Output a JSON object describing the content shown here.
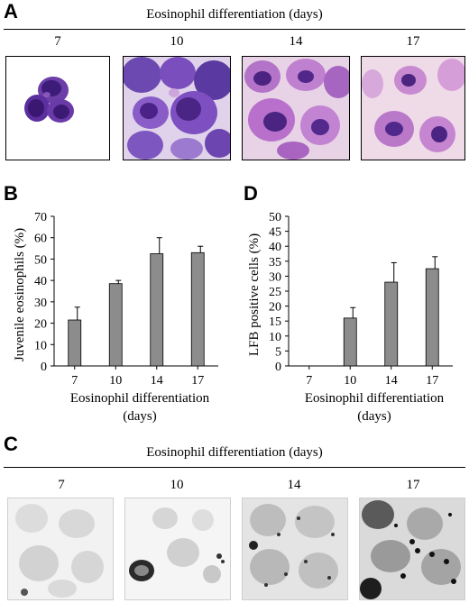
{
  "panels": {
    "A": {
      "letter": "A",
      "title": "Eosinophil differentiation (days)",
      "days": [
        "7",
        "10",
        "14",
        "17"
      ]
    },
    "C": {
      "letter": "C",
      "title": "Eosinophil differentiation (days)",
      "days": [
        "7",
        "10",
        "14",
        "17"
      ]
    }
  },
  "chart_data": [
    {
      "letter": "B",
      "type": "bar",
      "categories": [
        "7",
        "10",
        "14",
        "17"
      ],
      "values": [
        21.5,
        38.5,
        52.5,
        53
      ],
      "errors": [
        6,
        1.5,
        7.5,
        3
      ],
      "ylabel": "Juvenile eosinophils (%)",
      "xlabel": "Eosinophil differentiation",
      "xlabel2": "(days)",
      "ylim": [
        0,
        70
      ],
      "yticks": [
        "0",
        "10",
        "20",
        "30",
        "40",
        "50",
        "60",
        "70"
      ],
      "bar_color": "#8c8c8c"
    },
    {
      "letter": "D",
      "type": "bar",
      "categories": [
        "7",
        "10",
        "14",
        "17"
      ],
      "values": [
        0,
        16,
        28,
        32.5
      ],
      "errors": [
        0,
        3.5,
        6.5,
        4
      ],
      "ylabel": "LFB positive cells (%)",
      "xlabel": "Eosinophil differentiation",
      "xlabel2": "(days)",
      "ylim": [
        0,
        50
      ],
      "yticks": [
        "0",
        "5",
        "10",
        "15",
        "20",
        "25",
        "30",
        "35",
        "40",
        "45",
        "50"
      ],
      "bar_color": "#8c8c8c"
    }
  ]
}
